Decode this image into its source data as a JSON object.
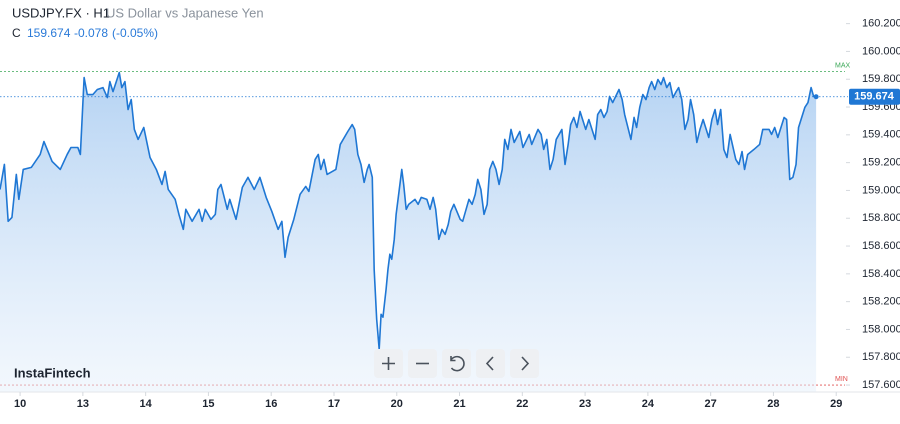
{
  "header": {
    "symbol": "USDJPY.FX · H1",
    "description": "US Dollar vs Japanese Yen",
    "close_label": "C",
    "change": "-0.078",
    "change_percent": "(-0.05%)"
  },
  "brand": "InstaFintech",
  "chart_data": {
    "type": "area",
    "color": "#1f77d4",
    "x": [
      -0.32,
      -0.25,
      -0.19,
      -0.13,
      -0.06,
      -0.02,
      0.05,
      0.18,
      0.32,
      0.38,
      0.51,
      0.64,
      0.75,
      0.81,
      0.92,
      0.96,
      1.02,
      1.07,
      1.16,
      1.23,
      1.32,
      1.39,
      1.43,
      1.48,
      1.58,
      1.62,
      1.67,
      1.72,
      1.77,
      1.82,
      1.88,
      1.97,
      2.07,
      2.17,
      2.26,
      2.31,
      2.36,
      2.47,
      2.53,
      2.6,
      2.64,
      2.74,
      2.85,
      2.9,
      2.95,
      3.04,
      3.11,
      3.15,
      3.2,
      3.3,
      3.34,
      3.44,
      3.54,
      3.63,
      3.73,
      3.82,
      3.92,
      4.01,
      4.11,
      4.17,
      4.22,
      4.27,
      4.36,
      4.46,
      4.55,
      4.6,
      4.7,
      4.75,
      4.79,
      4.84,
      4.89,
      5.03,
      5.1,
      5.22,
      5.29,
      5.33,
      5.38,
      5.43,
      5.48,
      5.53,
      5.56,
      5.61,
      5.64,
      5.68,
      5.72,
      5.75,
      5.78,
      5.83,
      5.86,
      5.89,
      5.92,
      5.96,
      5.99,
      6.04,
      6.08,
      6.11,
      6.15,
      6.19,
      6.29,
      6.34,
      6.39,
      6.48,
      6.53,
      6.58,
      6.62,
      6.67,
      6.72,
      6.77,
      6.82,
      6.86,
      6.91,
      7.01,
      7.05,
      7.15,
      7.2,
      7.25,
      7.29,
      7.34,
      7.39,
      7.44,
      7.48,
      7.53,
      7.58,
      7.63,
      7.68,
      7.72,
      7.77,
      7.82,
      7.87,
      7.96,
      8.01,
      8.11,
      8.15,
      8.25,
      8.3,
      8.34,
      8.39,
      8.44,
      8.49,
      8.54,
      8.63,
      8.68,
      8.73,
      8.77,
      8.82,
      8.87,
      8.92,
      8.96,
      9.01,
      9.06,
      9.16,
      9.2,
      9.25,
      9.3,
      9.35,
      9.39,
      9.44,
      9.54,
      9.59,
      9.63,
      9.73,
      9.78,
      9.82,
      9.87,
      9.92,
      9.97,
      10.02,
      10.06,
      10.11,
      10.16,
      10.21,
      10.25,
      10.3,
      10.35,
      10.4,
      10.45,
      10.49,
      10.54,
      10.59,
      10.64,
      10.68,
      10.73,
      10.78,
      10.83,
      10.88,
      10.97,
      11.02,
      11.07,
      11.11,
      11.16,
      11.21,
      11.26,
      11.31,
      11.4,
      11.45,
      11.5,
      11.54,
      11.59,
      11.69,
      11.78,
      11.83,
      11.93,
      11.97,
      12.02,
      12.07,
      12.17,
      12.21,
      12.26,
      12.31,
      12.36,
      12.4,
      12.45,
      12.5,
      12.55,
      12.6,
      12.64,
      12.68
    ],
    "series": [
      {
        "name": "USDJPY.FX",
        "values": [
          159.007,
          159.187,
          158.778,
          158.806,
          159.115,
          158.936,
          159.151,
          159.166,
          159.259,
          159.352,
          159.209,
          159.151,
          159.259,
          159.309,
          159.309,
          159.259,
          159.812,
          159.69,
          159.69,
          159.726,
          159.74,
          159.668,
          159.783,
          159.711,
          159.848,
          159.74,
          159.783,
          159.582,
          159.654,
          159.439,
          159.367,
          159.453,
          159.237,
          159.151,
          159.043,
          159.137,
          159.007,
          158.936,
          158.828,
          158.72,
          158.864,
          158.778,
          158.864,
          158.778,
          158.864,
          158.792,
          158.828,
          159.007,
          159.043,
          158.864,
          158.936,
          158.792,
          159.022,
          159.094,
          159.007,
          159.094,
          158.95,
          158.849,
          158.72,
          158.778,
          158.519,
          158.663,
          158.792,
          158.972,
          159.029,
          158.993,
          159.223,
          159.259,
          159.151,
          159.223,
          159.115,
          159.151,
          159.331,
          159.424,
          159.474,
          159.439,
          159.259,
          159.187,
          159.058,
          159.151,
          159.187,
          159.094,
          158.433,
          158.074,
          157.858,
          158.109,
          158.088,
          158.289,
          158.433,
          158.541,
          158.505,
          158.648,
          158.828,
          159.007,
          159.151,
          159.043,
          158.864,
          158.9,
          158.936,
          158.9,
          158.95,
          158.936,
          158.864,
          158.95,
          158.864,
          158.648,
          158.72,
          158.684,
          158.756,
          158.849,
          158.9,
          158.792,
          158.778,
          158.936,
          158.9,
          158.972,
          159.079,
          159.007,
          158.828,
          158.9,
          159.151,
          159.209,
          159.151,
          159.043,
          159.151,
          159.367,
          159.295,
          159.439,
          159.345,
          159.424,
          159.309,
          159.403,
          159.331,
          159.439,
          159.403,
          159.295,
          159.367,
          159.151,
          159.223,
          159.367,
          159.439,
          159.187,
          159.331,
          159.474,
          159.525,
          159.453,
          159.568,
          159.51,
          159.439,
          159.51,
          159.367,
          159.546,
          159.582,
          159.525,
          159.568,
          159.676,
          159.632,
          159.726,
          159.654,
          159.546,
          159.367,
          159.525,
          159.453,
          159.597,
          159.69,
          159.654,
          159.74,
          159.783,
          159.726,
          159.798,
          159.762,
          159.812,
          159.74,
          159.776,
          159.668,
          159.711,
          159.74,
          159.654,
          159.439,
          159.51,
          159.654,
          159.546,
          159.345,
          159.439,
          159.51,
          159.381,
          159.51,
          159.582,
          159.474,
          159.582,
          159.295,
          159.237,
          159.403,
          159.223,
          159.187,
          159.28,
          159.151,
          159.259,
          159.295,
          159.331,
          159.439,
          159.439,
          159.403,
          159.453,
          159.381,
          159.525,
          159.51,
          159.079,
          159.094,
          159.187,
          159.453,
          159.525,
          159.597,
          159.632,
          159.74,
          159.676,
          159.674
        ]
      }
    ],
    "xlim": [
      -0.32,
      13.14
    ],
    "xticks": [
      {
        "value": 0,
        "label": "10"
      },
      {
        "value": 1,
        "label": "13"
      },
      {
        "value": 2,
        "label": "14"
      },
      {
        "value": 3,
        "label": "15"
      },
      {
        "value": 4,
        "label": "16"
      },
      {
        "value": 5,
        "label": "17"
      },
      {
        "value": 6,
        "label": "20"
      },
      {
        "value": 7,
        "label": "21"
      },
      {
        "value": 8,
        "label": "22"
      },
      {
        "value": 9,
        "label": "23"
      },
      {
        "value": 10,
        "label": "24"
      },
      {
        "value": 11,
        "label": "27"
      },
      {
        "value": 12,
        "label": "28"
      },
      {
        "value": 13,
        "label": "29"
      }
    ],
    "ylim": [
      157.55,
      160.37
    ],
    "yticks": [
      {
        "value": 160.2,
        "label": "160.200"
      },
      {
        "value": 160.0,
        "label": "160.000"
      },
      {
        "value": 159.8,
        "label": "159.800"
      },
      {
        "value": 159.6,
        "label": "159.600"
      },
      {
        "value": 159.4,
        "label": "159.400"
      },
      {
        "value": 159.2,
        "label": "159.200"
      },
      {
        "value": 159.0,
        "label": "159.000"
      },
      {
        "value": 158.8,
        "label": "158.800"
      },
      {
        "value": 158.6,
        "label": "158.600"
      },
      {
        "value": 158.4,
        "label": "158.400"
      },
      {
        "value": 158.2,
        "label": "158.200"
      },
      {
        "value": 158.0,
        "label": "158.000"
      },
      {
        "value": 157.8,
        "label": "157.800"
      },
      {
        "value": 157.6,
        "label": "157.600"
      }
    ],
    "reference_lines": [
      {
        "label": "MAX",
        "value": 159.855,
        "color": "#3aa757"
      },
      {
        "label": "MIN",
        "value": 157.6,
        "color": "#e05252"
      }
    ]
  }
}
